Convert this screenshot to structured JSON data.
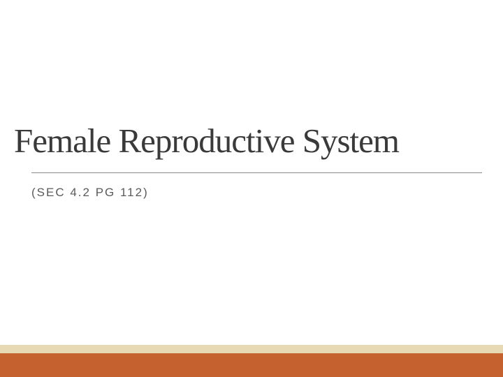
{
  "slide": {
    "title": "Female Reproductive System",
    "subtitle": "(SEC 4.2 PG 112)",
    "background_color": "#ffffff",
    "title_color": "#3a3a3a",
    "title_fontsize": 49,
    "subtitle_color": "#5a5a5a",
    "subtitle_fontsize": 17,
    "subtitle_letter_spacing": 2,
    "divider_color": "#888888",
    "bottom_bar": {
      "cream_color": "#e8d9b5",
      "orange_color": "#c5612e",
      "total_height": 46,
      "cream_height": 12
    }
  }
}
